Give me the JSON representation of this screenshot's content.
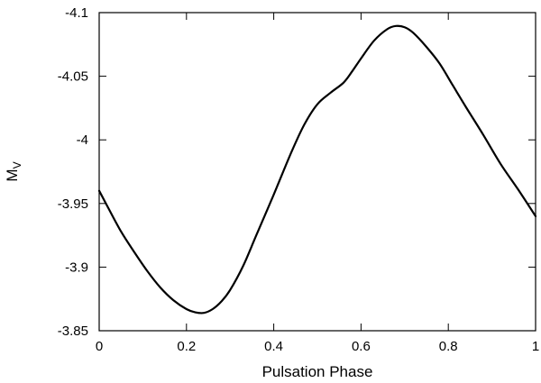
{
  "chart_data": {
    "type": "line",
    "title": "",
    "xlabel": "Pulsation Phase",
    "ylabel_main": "M",
    "ylabel_sub": "V",
    "xlim": [
      0,
      1
    ],
    "ylim": [
      -3.85,
      -4.1
    ],
    "y_inverted": true,
    "grid": false,
    "legend": "none",
    "x_ticks": [
      0,
      0.2,
      0.4,
      0.6,
      0.8,
      1
    ],
    "x_tick_labels": [
      "0",
      "0.2",
      "0.4",
      "0.6",
      "0.8",
      "1"
    ],
    "y_ticks": [
      -3.85,
      -3.9,
      -3.95,
      -4.0,
      -4.05,
      -4.1
    ],
    "y_tick_labels": [
      "-3.85",
      "-3.9",
      "-3.95",
      "-4",
      "-4.05",
      "-4.1"
    ],
    "series": [
      {
        "color": "#000000",
        "x": [
          0.0,
          0.02,
          0.05,
          0.08,
          0.11,
          0.14,
          0.17,
          0.2,
          0.22,
          0.24,
          0.26,
          0.28,
          0.3,
          0.33,
          0.36,
          0.4,
          0.44,
          0.47,
          0.5,
          0.53,
          0.56,
          0.58,
          0.6,
          0.63,
          0.66,
          0.68,
          0.7,
          0.72,
          0.75,
          0.78,
          0.81,
          0.84,
          0.88,
          0.92,
          0.96,
          1.0
        ],
        "y": [
          -3.96,
          -3.947,
          -3.928,
          -3.912,
          -3.897,
          -3.884,
          -3.874,
          -3.867,
          -3.8645,
          -3.864,
          -3.867,
          -3.873,
          -3.882,
          -3.901,
          -3.925,
          -3.957,
          -3.99,
          -4.012,
          -4.028,
          -4.037,
          -4.045,
          -4.054,
          -4.064,
          -4.078,
          -4.087,
          -4.0895,
          -4.0885,
          -4.084,
          -4.073,
          -4.06,
          -4.043,
          -4.026,
          -4.004,
          -3.981,
          -3.961,
          -3.94
        ]
      }
    ]
  }
}
